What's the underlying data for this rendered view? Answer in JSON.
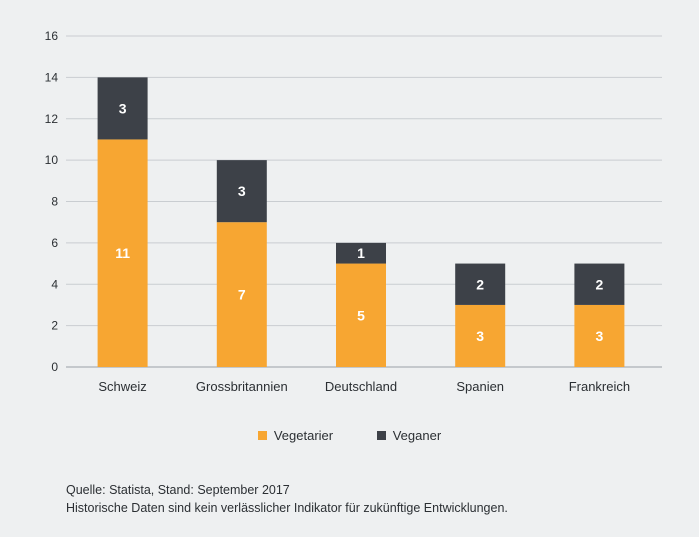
{
  "chart_data": {
    "type": "bar",
    "stacked": true,
    "categories": [
      "Schweiz",
      "Grossbritannien",
      "Deutschland",
      "Spanien",
      "Frankreich"
    ],
    "series": [
      {
        "name": "Vegetarier",
        "values": [
          11,
          7,
          5,
          3,
          3
        ],
        "color": "#f7a632"
      },
      {
        "name": "Veganer",
        "values": [
          3,
          3,
          1,
          2,
          2
        ],
        "color": "#3d4148"
      }
    ],
    "ylim": [
      0,
      16
    ],
    "yticks": [
      0,
      2,
      4,
      6,
      8,
      10,
      12,
      14,
      16
    ],
    "grid": true,
    "legend_position": "bottom"
  },
  "footer": {
    "source": "Quelle: Statista, Stand: September 2017",
    "disclaimer": "Historische Daten sind kein verlässlicher Indikator für zukünftige Entwicklungen."
  }
}
